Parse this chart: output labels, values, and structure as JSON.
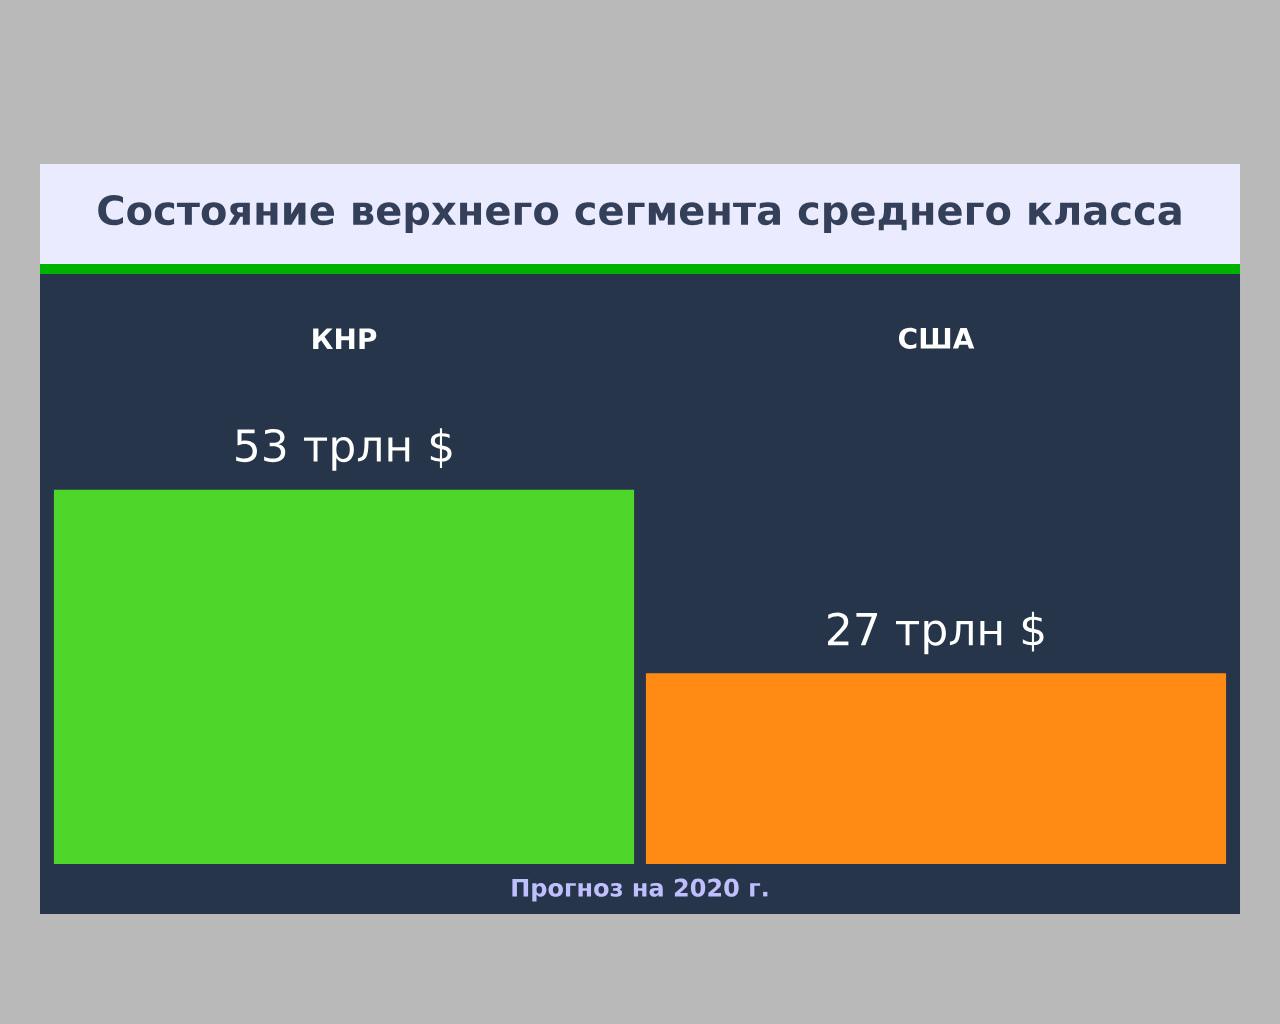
{
  "chart_data": {
    "type": "bar",
    "title": "Состояние верхнего сегмента среднего класса",
    "categories": [
      "КНР",
      "США"
    ],
    "values": [
      53,
      27
    ],
    "colors": [
      "#4fd62a",
      "#ff8a14"
    ],
    "value_labels": [
      "53 трлн $",
      "27 трлн $"
    ],
    "annotations": [
      "Прогноз на 2020 г."
    ]
  }
}
